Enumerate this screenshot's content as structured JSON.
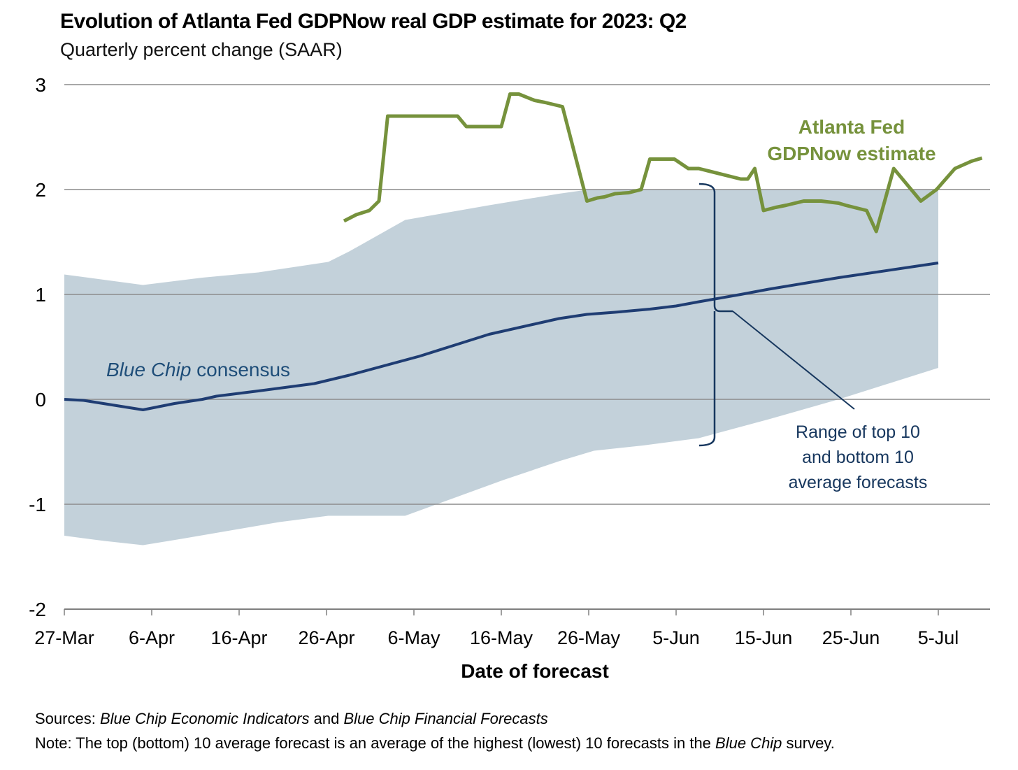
{
  "chart_data": {
    "type": "line",
    "title": "Evolution of Atlanta Fed GDPNow real GDP estimate for 2023: Q2",
    "subtitle": "Quarterly percent change (SAAR)",
    "xlabel": "Date of forecast",
    "ylabel": "",
    "x_units": "days since 27-Mar-2023",
    "xlim": [
      0,
      106
    ],
    "ylim": [
      -2,
      3
    ],
    "yticks": [
      3,
      2,
      1,
      0,
      -1,
      -2
    ],
    "ytick_labels": [
      "3",
      "2",
      "1",
      "0",
      "-1",
      "-2"
    ],
    "xticks": [
      0,
      10,
      20,
      30,
      40,
      50,
      60,
      70,
      80,
      90,
      100
    ],
    "xtick_labels": [
      "27-Mar",
      "6-Apr",
      "16-Apr",
      "26-Apr",
      "6-May",
      "16-May",
      "26-May",
      "5-Jun",
      "15-Jun",
      "25-Jun",
      "5-Jul"
    ],
    "grid": true,
    "series": [
      {
        "name": "Atlanta Fed GDPNow estimate",
        "label_lines": [
          "Atlanta Fed",
          "GDPNow estimate"
        ],
        "color": "#76923c",
        "x": [
          32,
          33.4,
          34.9,
          36,
          37,
          45,
          46,
          50,
          51,
          52,
          53.8,
          55,
          57,
          59.8,
          61,
          61.8,
          63,
          64.6,
          66,
          67,
          69.8,
          71.4,
          72.6,
          77.4,
          78.2,
          79,
          80,
          81.4,
          82.6,
          84.6,
          86.6,
          88.6,
          89.4,
          91.8,
          92.9,
          94.9,
          98,
          99.8,
          101.9,
          103.8,
          105
        ],
        "y": [
          1.7,
          1.76,
          1.8,
          1.89,
          2.7,
          2.7,
          2.6,
          2.6,
          2.91,
          2.91,
          2.85,
          2.83,
          2.79,
          1.89,
          1.92,
          1.93,
          1.96,
          1.97,
          2.0,
          2.29,
          2.29,
          2.2,
          2.2,
          2.1,
          2.1,
          2.2,
          1.8,
          1.83,
          1.85,
          1.89,
          1.89,
          1.87,
          1.85,
          1.8,
          1.6,
          2.2,
          1.89,
          2.0,
          2.2,
          2.27,
          2.3
        ]
      },
      {
        "name": "Blue Chip consensus",
        "label_italic": "Blue Chip",
        "label_rest": " consensus",
        "color": "#1f3d73",
        "x": [
          0,
          2.2,
          9,
          12.6,
          15.8,
          17.4,
          22.2,
          28.6,
          32.6,
          40.6,
          48.6,
          56.6,
          59.8,
          63,
          67,
          70,
          72.6,
          77.4,
          80.6,
          88.6,
          100
        ],
        "y": [
          0,
          -0.01,
          -0.1,
          -0.04,
          0,
          0.03,
          0.08,
          0.15,
          0.23,
          0.41,
          0.62,
          0.77,
          0.81,
          0.83,
          0.86,
          0.89,
          0.93,
          1.0,
          1.05,
          1.16,
          1.3
        ]
      }
    ],
    "band": {
      "name": "Range of top 10 and bottom 10 average forecasts",
      "label_lines": [
        "Range of top 10",
        "and bottom 10",
        "average forecasts"
      ],
      "color": "#c3d1da",
      "upper": {
        "x": [
          0,
          9,
          15.8,
          22.2,
          30.2,
          32.6,
          39,
          48.6,
          56.6,
          60,
          100
        ],
        "y": [
          1.19,
          1.09,
          1.16,
          1.21,
          1.31,
          1.41,
          1.71,
          1.85,
          1.96,
          2.0,
          2.0
        ]
      },
      "lower": {
        "x": [
          0,
          4.6,
          9,
          13.4,
          19,
          24.6,
          30.2,
          39,
          44.6,
          50.2,
          56.6,
          60.6,
          66.2,
          72.6,
          80.6,
          88.6,
          100
        ],
        "y": [
          -1.3,
          -1.35,
          -1.39,
          -1.33,
          -1.25,
          -1.17,
          -1.11,
          -1.11,
          -0.94,
          -0.77,
          -0.59,
          -0.49,
          -0.44,
          -0.37,
          -0.19,
          0,
          0.3
        ]
      }
    }
  },
  "footer": {
    "sources_label": "Sources:",
    "sources_text_1": "Blue Chip Economic Indicators",
    "sources_and": " and ",
    "sources_text_2": "Blue Chip Financial Forecasts",
    "note_label": "Note:",
    "note_text_1": " The top (bottom) 10 average forecast is an average of the highest (lowest) 10 forecasts in the ",
    "note_italic": "Blue Chip",
    "note_text_2": " survey."
  }
}
